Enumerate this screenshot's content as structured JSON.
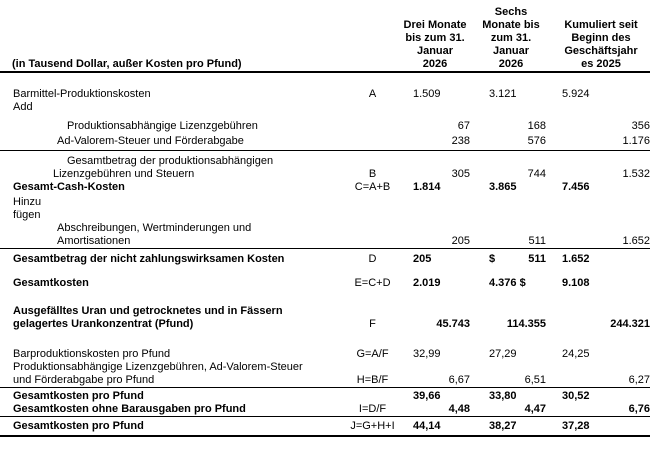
{
  "page": {
    "background_color": "#ffffff",
    "text_color": "#000000",
    "rule_color": "#000000"
  },
  "table": {
    "unit_label": "(in Tausend Dollar, außer Kosten pro Pfund)",
    "column_headers": [
      "Drei Monate\nbis zum 31.\nJanuar\n2026",
      "Sechs\nMonate bis\nzum 31.\nJanuar\n2026",
      "Kumuliert seit\nBeginn des\nGeschäftsjahr\nes 2025"
    ],
    "rows": [
      {
        "label": "Barmittel-Produktionskosten",
        "letter": "A",
        "values": [
          "1.509",
          "3.121",
          "5.924"
        ]
      },
      {
        "label": "Add",
        "letter": "",
        "values": [
          "",
          "",
          ""
        ]
      },
      {
        "label": "Produktionsabhängige Lizenzgebühren",
        "letter": "",
        "values": [
          "67",
          "168",
          "356"
        ]
      },
      {
        "label": "Ad-Valorem-Steuer und Förderabgabe",
        "letter": "",
        "values": [
          "238",
          "576",
          "1.176"
        ]
      },
      {
        "label": "Gesamtbetrag der produktionsabhängigen\nLizenzgebühren und Steuern",
        "letter": "B",
        "values": [
          "305",
          "744",
          "1.532"
        ]
      },
      {
        "label": "Gesamt-Cash-Kosten",
        "letter": "C=A+B",
        "values": [
          "1.814",
          "3.865",
          "7.456"
        ]
      },
      {
        "label": "Hinzu\nfügen",
        "letter": "",
        "values": [
          "",
          "",
          ""
        ]
      },
      {
        "label": "Abschreibungen, Wertminderungen und\nAmortisationen",
        "letter": "",
        "values": [
          "205",
          "511",
          "1.652"
        ]
      },
      {
        "label": "Gesamtbetrag der nicht zahlungswirksamen Kosten",
        "letter": "D",
        "dollar_prefix": "$",
        "values": [
          "205",
          "511",
          "1.652"
        ]
      },
      {
        "label": "Gesamtkosten",
        "letter": "E=C+D",
        "values": [
          "2.019",
          "4.376 $",
          "9.108"
        ]
      },
      {
        "label": "Ausgefälltes Uran und getrocknetes und in Fässern\ngelagertes Urankonzentrat (Pfund)",
        "letter": "F",
        "values": [
          "45.743",
          "114.355",
          "244.321"
        ]
      },
      {
        "label": "Barproduktionskosten pro Pfund",
        "letter": "G=A/F",
        "values": [
          "32,99",
          "27,29",
          "24,25"
        ]
      },
      {
        "label": "Produktionsabhängige Lizenzgebühren, Ad-Valorem-Steuer\nund Förderabgabe pro Pfund",
        "letter": "H=B/F",
        "values": [
          "6,67",
          "6,51",
          "6,27"
        ]
      },
      {
        "label": "Gesamtkosten pro Pfund",
        "letter": "",
        "values": [
          "39,66",
          "33,80",
          "30,52"
        ]
      },
      {
        "label": "Gesamtkosten ohne Barausgaben pro Pfund",
        "letter": "I=D/F",
        "values": [
          "4,48",
          "4,47",
          "6,76"
        ]
      },
      {
        "label": "Gesamtkosten pro Pfund",
        "letter": "J=G+H+I",
        "values": [
          "44,14",
          "38,27",
          "37,28"
        ]
      }
    ]
  }
}
